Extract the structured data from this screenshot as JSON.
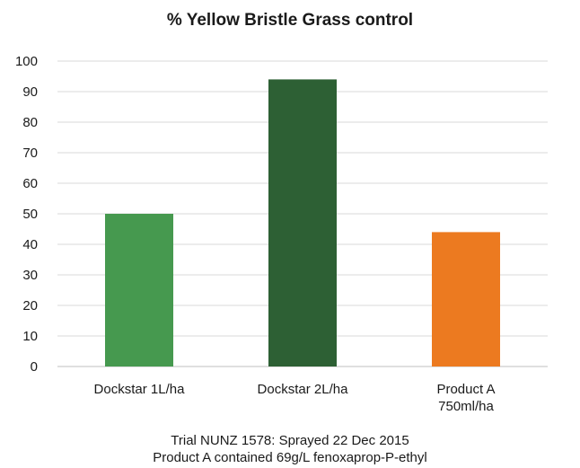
{
  "chart_data": {
    "type": "bar",
    "title": "% Yellow Bristle Grass control",
    "categories": [
      [
        "Dockstar 1L/ha"
      ],
      [
        "Dockstar 2L/ha"
      ],
      [
        "Product A",
        "750ml/ha"
      ]
    ],
    "values": [
      50,
      94,
      44
    ],
    "bar_colors": [
      "#46994f",
      "#2d6034",
      "#ec7a20"
    ],
    "ylim": [
      0,
      100
    ],
    "yticks": [
      0,
      10,
      20,
      30,
      40,
      50,
      60,
      70,
      80,
      90,
      100
    ],
    "grid": true,
    "legend": "none"
  },
  "notes": [
    "Trial NUNZ 1578: Sprayed 22 Dec 2015",
    "Product A contained 69g/L fenoxaprop-P-ethyl"
  ]
}
